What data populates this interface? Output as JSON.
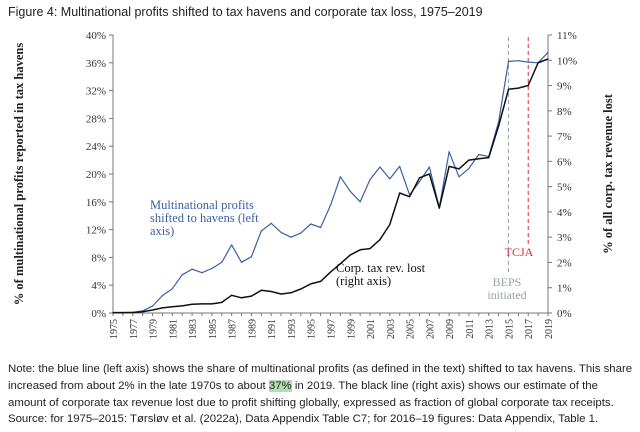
{
  "figure": {
    "title": "Figure 4: Multinational profits shifted to tax havens and corporate tax loss, 1975–2019"
  },
  "chart_data": {
    "type": "line",
    "title": "Multinational profits shifted to tax havens and corporate tax loss, 1975–2019",
    "ylabel_left": "% of multinational profits reported in tax havens",
    "ylabel_right": "% of all corp. tax revenue lost",
    "ylim_left": [
      0,
      40
    ],
    "ylim_right": [
      0,
      11
    ],
    "left_ticks": [
      "0%",
      "4%",
      "8%",
      "12%",
      "16%",
      "20%",
      "24%",
      "28%",
      "32%",
      "36%",
      "40%"
    ],
    "right_ticks": [
      "0%",
      "1%",
      "2%",
      "3%",
      "4%",
      "5%",
      "6%",
      "7%",
      "8%",
      "9%",
      "10%",
      "11%"
    ],
    "x_ticks": [
      "1975",
      "1977",
      "1979",
      "1981",
      "1983",
      "1985",
      "1987",
      "1989",
      "1991",
      "1993",
      "1995",
      "1997",
      "1999",
      "2001",
      "2003",
      "2005",
      "2007",
      "2009",
      "2011",
      "2013",
      "2015",
      "2017",
      "2019"
    ],
    "x": [
      1975,
      1976,
      1977,
      1978,
      1979,
      1980,
      1981,
      1982,
      1983,
      1984,
      1985,
      1986,
      1987,
      1988,
      1989,
      1990,
      1991,
      1992,
      1993,
      1994,
      1995,
      1996,
      1997,
      1998,
      1999,
      2000,
      2001,
      2002,
      2003,
      2004,
      2005,
      2006,
      2007,
      2008,
      2009,
      2010,
      2011,
      2012,
      2013,
      2014,
      2015,
      2016,
      2017,
      2018,
      2019
    ],
    "series": [
      {
        "name": "Multinational profits shifted to havens (left axis)",
        "axis": "left",
        "color": "#3a5fa8",
        "values": [
          0.1,
          0.1,
          0.1,
          0.3,
          1.0,
          2.5,
          3.5,
          5.5,
          6.3,
          5.8,
          6.4,
          7.3,
          9.8,
          7.3,
          8.1,
          11.8,
          12.9,
          11.6,
          10.9,
          11.5,
          12.8,
          12.3,
          15.5,
          19.6,
          17.5,
          16.0,
          19.2,
          21.0,
          19.3,
          21.1,
          17.0,
          18.9,
          21.0,
          15.2,
          23.2,
          19.6,
          20.8,
          22.8,
          22.5,
          27.5,
          36.2,
          36.3,
          36.1,
          36.0,
          37.5
        ]
      },
      {
        "name": "Corp. tax rev. lost (right axis)",
        "axis": "right",
        "color": "#111111",
        "values": [
          0.01,
          0.01,
          0.02,
          0.05,
          0.12,
          0.2,
          0.25,
          0.28,
          0.35,
          0.36,
          0.36,
          0.42,
          0.7,
          0.6,
          0.67,
          0.9,
          0.85,
          0.75,
          0.8,
          0.95,
          1.15,
          1.25,
          1.62,
          1.95,
          2.3,
          2.5,
          2.55,
          2.9,
          3.5,
          4.75,
          4.6,
          5.35,
          5.5,
          4.15,
          5.8,
          5.7,
          6.05,
          6.1,
          6.15,
          7.4,
          8.85,
          8.9,
          9.0,
          9.9,
          10.05
        ]
      }
    ],
    "annotations": [
      {
        "id": "beps",
        "text": "BEPS initiated",
        "year": 2015,
        "color": "#9aa0a8"
      },
      {
        "id": "tcja",
        "text": "TCJA",
        "year": 2017,
        "color": "#d9303a"
      }
    ],
    "series_labels": {
      "blue": "Multinational profits shifted to havens (left axis)",
      "black": "Corp. tax rev. lost (right axis)"
    }
  },
  "labels": {
    "blue_line1": "Multinational profits",
    "blue_line2": "shifted to havens (left",
    "blue_line3": "axis)",
    "black_line1": "Corp. tax rev. lost",
    "black_line2": "(right axis)",
    "beps_line1": "BEPS",
    "beps_line2": "initiated",
    "tcja": "TCJA"
  },
  "note": {
    "part1": "Note: the blue line (left axis) shows the share of multinational profits (as defined in the text) shifted to tax havens. This share increased from about 2% in the late 1970s to about ",
    "highlight": "37%",
    "part2": " in 2019. The black line (right axis) shows our estimate of the amount of corporate tax revenue lost due to profit shifting globally, expressed as fraction of global corporate tax receipts."
  },
  "source": "Source: for 1975–2015: Tørsløv et al. (2022a), Data Appendix Table C7; for 2016–19 figures: Data Appendix, Table 1."
}
